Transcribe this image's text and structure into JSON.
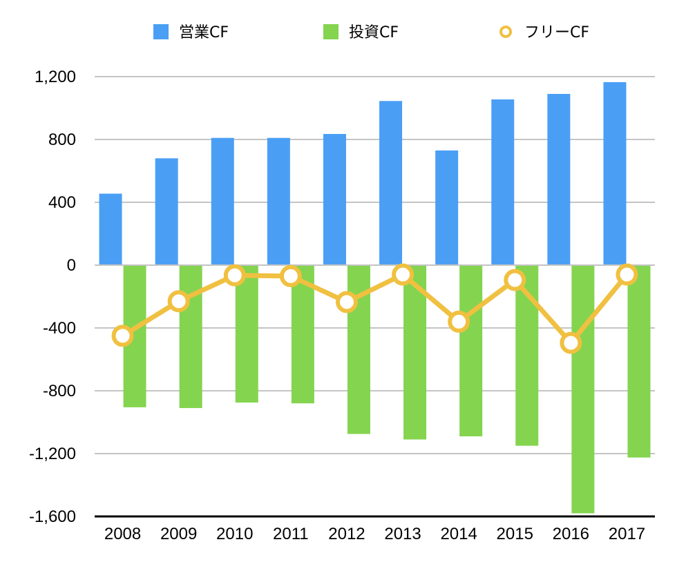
{
  "chart_data": {
    "type": "bar",
    "categories": [
      "2008",
      "2009",
      "2010",
      "2011",
      "2012",
      "2013",
      "2014",
      "2015",
      "2016",
      "2017"
    ],
    "series": [
      {
        "name": "営業CF",
        "type": "bar",
        "color": "#4a9ff5",
        "values": [
          455,
          680,
          810,
          810,
          835,
          1045,
          730,
          1055,
          1090,
          1165
        ]
      },
      {
        "name": "投資CF",
        "type": "bar",
        "color": "#84d44f",
        "values": [
          -905,
          -910,
          -875,
          -880,
          -1075,
          -1110,
          -1090,
          -1150,
          -1580,
          -1225
        ]
      },
      {
        "name": "フリーCF",
        "type": "line",
        "color": "#f0c040",
        "values": [
          -450,
          -230,
          -65,
          -70,
          -235,
          -60,
          -360,
          -95,
          -495,
          -60
        ]
      }
    ],
    "y_ticks": [
      1200,
      800,
      400,
      0,
      -400,
      -800,
      -1200,
      -1600
    ],
    "y_tick_labels": [
      "1,200",
      "800",
      "400",
      "0",
      "-400",
      "-800",
      "-1,200",
      "-1,600"
    ],
    "ylim": [
      -1600,
      1200
    ],
    "grid": true,
    "legend_position": "top"
  }
}
